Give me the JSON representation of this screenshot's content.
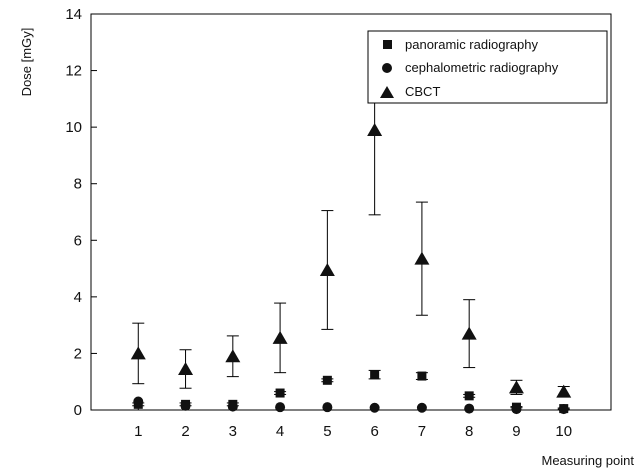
{
  "chart_data": {
    "type": "scatter",
    "xlabel": "Measuring point",
    "ylabel": "Dose  [mGy]",
    "x": [
      1,
      2,
      3,
      4,
      5,
      6,
      7,
      8,
      9,
      10
    ],
    "xlim": [
      0,
      11
    ],
    "ylim": [
      0,
      14
    ],
    "x_ticks": [
      "1",
      "2",
      "3",
      "4",
      "5",
      "6",
      "7",
      "8",
      "9",
      "10"
    ],
    "y_ticks": [
      "0",
      "2",
      "4",
      "6",
      "8",
      "10",
      "12",
      "14"
    ],
    "grid": false,
    "legend_position": "top-right",
    "series": [
      {
        "name": "panoramic radiography",
        "marker": "square",
        "values": [
          0.2,
          0.2,
          0.2,
          0.6,
          1.05,
          1.25,
          1.2,
          0.5,
          0.1,
          0.05
        ],
        "error": [
          0.05,
          0.05,
          0.05,
          0.05,
          0.05,
          0.15,
          0.12,
          0.05,
          0.02,
          0.02
        ]
      },
      {
        "name": "cephalometric radiography",
        "marker": "circle",
        "values": [
          0.3,
          0.15,
          0.12,
          0.1,
          0.1,
          0.08,
          0.08,
          0.05,
          0.03,
          0.03
        ],
        "error": [
          0,
          0,
          0,
          0,
          0,
          0,
          0,
          0,
          0,
          0
        ]
      },
      {
        "name": "CBCT",
        "marker": "triangle",
        "values": [
          2.0,
          1.45,
          1.9,
          2.55,
          4.95,
          9.9,
          5.35,
          2.7,
          0.8,
          0.65
        ],
        "error": [
          1.07,
          0.68,
          0.72,
          1.23,
          2.1,
          3.0,
          2.0,
          1.2,
          0.25,
          0.18
        ]
      }
    ]
  }
}
